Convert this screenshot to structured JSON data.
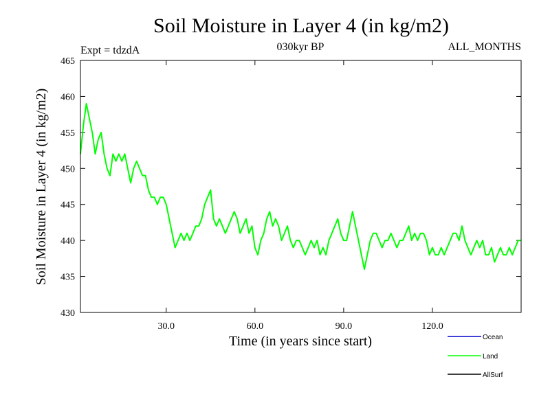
{
  "chart_data": {
    "type": "line",
    "title": "Soil Moisture in Layer 4 (in kg/m2)",
    "subtitle": "030kyr BP",
    "experiment_label": "Expt = tdzdA",
    "months_label": "ALL_MONTHS",
    "xlabel": "Time (in years since start)",
    "ylabel": "Soil Moisture in Layer 4 (in kg/m2)",
    "xlim": [
      1,
      150
    ],
    "ylim": [
      430,
      465
    ],
    "x_ticks": [
      30,
      60,
      90,
      120
    ],
    "x_tick_labels": [
      "30.0",
      "60.0",
      "90.0",
      "120.0"
    ],
    "y_ticks": [
      430,
      435,
      440,
      445,
      450,
      455,
      460,
      465
    ],
    "y_tick_labels": [
      "430",
      "435",
      "440",
      "445",
      "450",
      "455",
      "460",
      "465"
    ],
    "legend_position": "bottom-right",
    "series": [
      {
        "name": "Ocean",
        "color": "#0000cc",
        "x": [],
        "y": []
      },
      {
        "name": "Land",
        "color": "#00ff00",
        "x": [
          1,
          2,
          3,
          4,
          5,
          6,
          7,
          8,
          9,
          10,
          11,
          12,
          13,
          14,
          15,
          16,
          17,
          18,
          19,
          20,
          21,
          22,
          23,
          24,
          25,
          26,
          27,
          28,
          29,
          30,
          31,
          32,
          33,
          34,
          35,
          36,
          37,
          38,
          39,
          40,
          41,
          42,
          43,
          44,
          45,
          46,
          47,
          48,
          49,
          50,
          51,
          52,
          53,
          54,
          55,
          56,
          57,
          58,
          59,
          60,
          61,
          62,
          63,
          64,
          65,
          66,
          67,
          68,
          69,
          70,
          71,
          72,
          73,
          74,
          75,
          76,
          77,
          78,
          79,
          80,
          81,
          82,
          83,
          84,
          85,
          86,
          87,
          88,
          89,
          90,
          91,
          92,
          93,
          94,
          95,
          96,
          97,
          98,
          99,
          100,
          101,
          102,
          103,
          104,
          105,
          106,
          107,
          108,
          109,
          110,
          111,
          112,
          113,
          114,
          115,
          116,
          117,
          118,
          119,
          120,
          121,
          122,
          123,
          124,
          125,
          126,
          127,
          128,
          129,
          130,
          131,
          132,
          133,
          134,
          135,
          136,
          137,
          138,
          139,
          140,
          141,
          142,
          143,
          144,
          145,
          146,
          147,
          148,
          149,
          150
        ],
        "y": [
          452,
          456,
          459,
          457,
          455,
          452,
          454,
          455,
          452,
          450,
          449,
          452,
          451,
          452,
          451,
          452,
          450,
          448,
          450,
          451,
          450,
          449,
          449,
          447,
          446,
          446,
          445,
          446,
          446,
          445,
          443,
          441,
          439,
          440,
          441,
          440,
          441,
          440,
          441,
          442,
          442,
          443,
          445,
          446,
          447,
          443,
          442,
          443,
          442,
          441,
          442,
          443,
          444,
          443,
          441,
          442,
          443,
          441,
          442,
          439,
          438,
          440,
          441,
          443,
          444,
          442,
          443,
          442,
          440,
          441,
          442,
          440,
          439,
          440,
          440,
          439,
          438,
          439,
          440,
          439,
          440,
          438,
          439,
          438,
          440,
          441,
          442,
          443,
          441,
          440,
          440,
          442,
          444,
          442,
          440,
          438,
          436,
          438,
          440,
          441,
          441,
          440,
          439,
          440,
          440,
          441,
          440,
          439,
          440,
          440,
          441,
          442,
          440,
          441,
          440,
          441,
          441,
          440,
          438,
          439,
          438,
          438,
          439,
          438,
          439,
          440,
          441,
          441,
          440,
          442,
          440,
          439,
          438,
          439,
          440,
          439,
          440,
          438,
          438,
          439,
          437,
          438,
          439,
          438,
          438,
          439,
          438,
          439,
          440,
          440
        ]
      },
      {
        "name": "AllSurf",
        "color": "#000000",
        "x": [],
        "y": []
      }
    ]
  }
}
